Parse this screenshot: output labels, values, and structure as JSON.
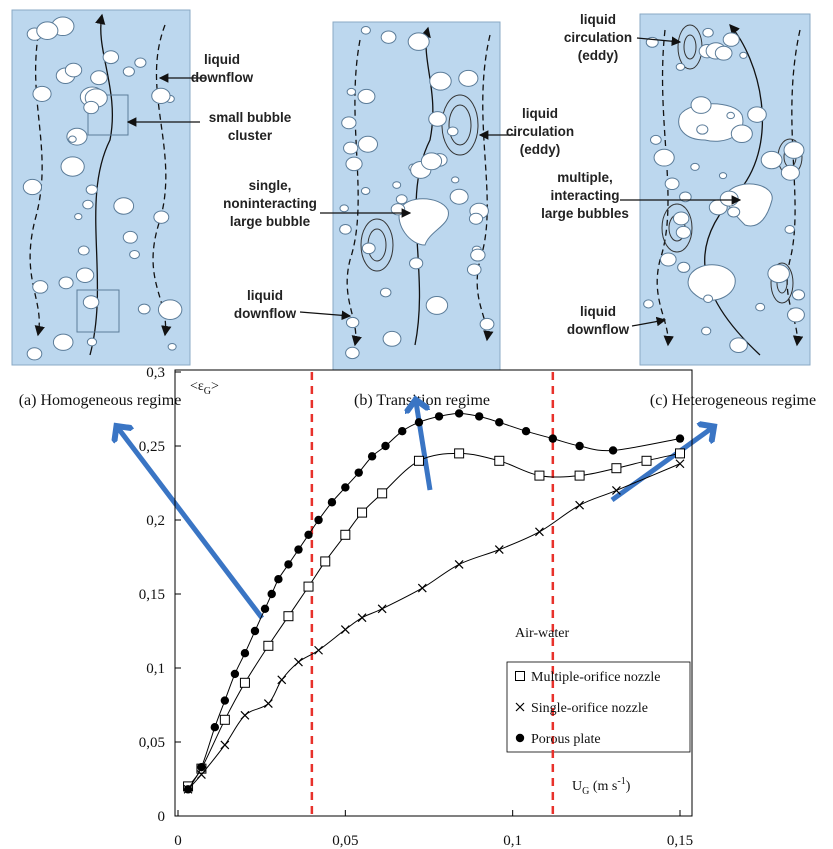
{
  "panels": [
    {
      "caption": "(a) Homogeneous regime",
      "labels": [
        {
          "lines": [
            "liquid",
            "downflow"
          ]
        },
        {
          "lines": [
            "small bubble",
            "cluster"
          ]
        }
      ]
    },
    {
      "caption": "(b) Transition regime",
      "labels": [
        {
          "lines": [
            "liquid",
            "circulation",
            "(eddy)"
          ]
        },
        {
          "lines": [
            "single,",
            "noninteracting",
            "large bubble"
          ]
        },
        {
          "lines": [
            "liquid",
            "downflow"
          ]
        }
      ]
    },
    {
      "caption": "(c) Heterogeneous regime",
      "labels": [
        {
          "lines": [
            "liquid",
            "circulation",
            "(eddy)"
          ]
        },
        {
          "lines": [
            "multiple,",
            "interacting",
            "large bubbles"
          ]
        },
        {
          "lines": [
            "liquid",
            "downflow"
          ]
        }
      ]
    }
  ],
  "chart_data": {
    "type": "scatter",
    "y_label_parts": [
      "<ε",
      "G",
      ">"
    ],
    "x_label_parts": [
      "U",
      "G",
      " (m s",
      "-1",
      ")"
    ],
    "annotation": "Air-water",
    "xlim": [
      0,
      0.15
    ],
    "ylim": [
      0,
      0.3
    ],
    "xticks": [
      0,
      {
        "value": 0.05,
        "label": "0,05"
      },
      {
        "value": 0.1,
        "label": "0,1"
      },
      {
        "value": 0.15,
        "label": "0,15"
      }
    ],
    "yticks": [
      0,
      {
        "value": 0.05,
        "label": "0,05"
      },
      {
        "value": 0.1,
        "label": "0,1"
      },
      {
        "value": 0.15,
        "label": "0,15"
      },
      {
        "value": 0.2,
        "label": "0,2"
      },
      {
        "value": 0.25,
        "label": "0,25"
      },
      {
        "value": 0.3,
        "label": "0,3"
      }
    ],
    "vlines": [
      0.04,
      0.112
    ],
    "vline_color": "#e8312b",
    "series": [
      {
        "name": "Multiple-orifice nozzle",
        "marker": "square",
        "color": "#000000",
        "x": [
          0.003,
          0.007,
          0.014,
          0.02,
          0.027,
          0.033,
          0.039,
          0.044,
          0.05,
          0.055,
          0.061,
          0.072,
          0.084,
          0.096,
          0.108,
          0.12,
          0.131,
          0.14,
          0.15
        ],
        "values": [
          0.02,
          0.032,
          0.065,
          0.09,
          0.115,
          0.135,
          0.155,
          0.172,
          0.19,
          0.205,
          0.218,
          0.24,
          0.245,
          0.24,
          0.23,
          0.23,
          0.235,
          0.24,
          0.245
        ]
      },
      {
        "name": "Single-orifice nozzle",
        "marker": "cross",
        "color": "#000000",
        "x": [
          0.003,
          0.007,
          0.014,
          0.02,
          0.027,
          0.031,
          0.036,
          0.042,
          0.05,
          0.055,
          0.061,
          0.073,
          0.084,
          0.096,
          0.108,
          0.12,
          0.131,
          0.15
        ],
        "values": [
          0.018,
          0.028,
          0.048,
          0.068,
          0.076,
          0.092,
          0.104,
          0.112,
          0.126,
          0.134,
          0.14,
          0.154,
          0.17,
          0.18,
          0.192,
          0.21,
          0.22,
          0.238
        ]
      },
      {
        "name": "Porous plate",
        "marker": "circle",
        "color": "#000000",
        "x": [
          0.003,
          0.007,
          0.011,
          0.014,
          0.017,
          0.02,
          0.023,
          0.026,
          0.028,
          0.03,
          0.033,
          0.036,
          0.039,
          0.042,
          0.046,
          0.05,
          0.054,
          0.058,
          0.062,
          0.067,
          0.072,
          0.078,
          0.084,
          0.09,
          0.096,
          0.104,
          0.112,
          0.12,
          0.13,
          0.15
        ],
        "values": [
          0.018,
          0.033,
          0.06,
          0.078,
          0.096,
          0.11,
          0.125,
          0.14,
          0.15,
          0.16,
          0.17,
          0.18,
          0.19,
          0.2,
          0.212,
          0.222,
          0.232,
          0.243,
          0.25,
          0.26,
          0.266,
          0.27,
          0.272,
          0.27,
          0.266,
          0.26,
          0.255,
          0.25,
          0.247,
          0.255
        ]
      }
    ]
  }
}
